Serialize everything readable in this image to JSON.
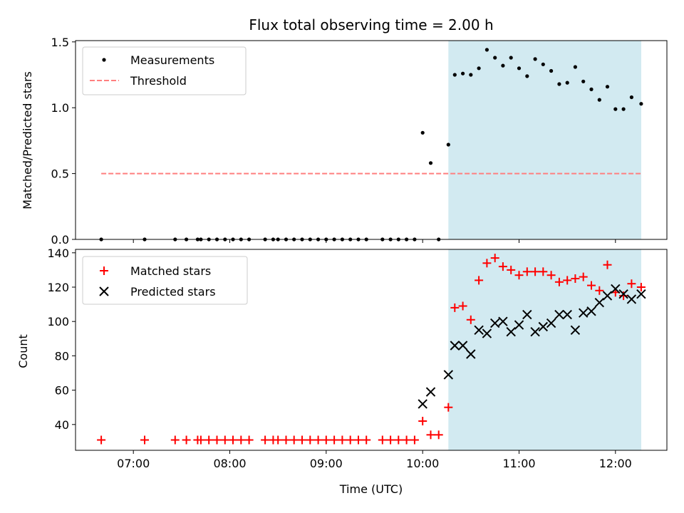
{
  "chart_data": [
    {
      "type": "scatter",
      "title": "Flux total observing time = 2.00 h",
      "xlabel": "",
      "ylabel": "Matched/Predicted stars",
      "xlim": [
        "06:24",
        "12:32"
      ],
      "ylim": [
        0,
        1.51
      ],
      "yticks": [
        "0.0",
        "0.5",
        "1.0",
        "1.5"
      ],
      "shaded_interval": [
        "10:16",
        "12:16"
      ],
      "shaded_color": "#add8e6",
      "legend_position": "top-left",
      "series": [
        {
          "name": "Measurements",
          "marker": "dot",
          "color": "#000000",
          "x": [
            "06:40",
            "07:07",
            "07:26",
            "07:33",
            "07:40",
            "07:42",
            "07:47",
            "07:52",
            "07:57",
            "08:02",
            "08:07",
            "08:12",
            "08:22",
            "08:27",
            "08:30",
            "08:35",
            "08:40",
            "08:45",
            "08:50",
            "08:55",
            "09:00",
            "09:05",
            "09:10",
            "09:15",
            "09:20",
            "09:25",
            "09:35",
            "09:40",
            "09:45",
            "09:50",
            "09:55",
            "10:00",
            "10:05",
            "10:10",
            "10:16",
            "10:20",
            "10:25",
            "10:30",
            "10:35",
            "10:40",
            "10:45",
            "10:50",
            "10:55",
            "11:00",
            "11:05",
            "11:10",
            "11:15",
            "11:20",
            "11:25",
            "11:30",
            "11:35",
            "11:40",
            "11:45",
            "11:50",
            "11:55",
            "12:00",
            "12:05",
            "12:10",
            "12:16"
          ],
          "y": [
            0,
            0,
            0,
            0,
            0,
            0,
            0,
            0,
            0,
            0,
            0,
            0,
            0,
            0,
            0,
            0,
            0,
            0,
            0,
            0,
            0,
            0,
            0,
            0,
            0,
            0,
            0,
            0,
            0,
            0,
            0,
            0.81,
            0.58,
            0,
            0.72,
            1.25,
            1.26,
            1.25,
            1.3,
            1.44,
            1.38,
            1.32,
            1.38,
            1.3,
            1.24,
            1.37,
            1.33,
            1.28,
            1.18,
            1.19,
            1.31,
            1.2,
            1.14,
            1.06,
            1.16,
            0.99,
            0.99,
            1.08,
            1.03
          ]
        },
        {
          "name": "Threshold",
          "line": "dashed",
          "color": "#ff7f7f",
          "x": [
            "06:40",
            "12:16"
          ],
          "y": [
            0.5,
            0.5
          ]
        }
      ]
    },
    {
      "type": "scatter",
      "title": "",
      "xlabel": "Time (UTC)",
      "ylabel": "Count",
      "xlim": [
        "06:24",
        "12:32"
      ],
      "ylim": [
        25,
        142
      ],
      "xticks": [
        "07:00",
        "08:00",
        "09:00",
        "10:00",
        "11:00",
        "12:00"
      ],
      "yticks": [
        "40",
        "60",
        "80",
        "100",
        "120",
        "140"
      ],
      "shaded_interval": [
        "10:16",
        "12:16"
      ],
      "shaded_color": "#add8e6",
      "legend_position": "top-left",
      "series": [
        {
          "name": "Matched stars",
          "marker": "plus",
          "color": "#ff0000",
          "x": [
            "06:40",
            "07:07",
            "07:26",
            "07:33",
            "07:40",
            "07:42",
            "07:47",
            "07:52",
            "07:57",
            "08:02",
            "08:07",
            "08:12",
            "08:22",
            "08:27",
            "08:30",
            "08:35",
            "08:40",
            "08:45",
            "08:50",
            "08:55",
            "09:00",
            "09:05",
            "09:10",
            "09:15",
            "09:20",
            "09:25",
            "09:35",
            "09:40",
            "09:45",
            "09:50",
            "09:55",
            "10:00",
            "10:05",
            "10:10",
            "10:16",
            "10:20",
            "10:25",
            "10:30",
            "10:35",
            "10:40",
            "10:45",
            "10:50",
            "10:55",
            "11:00",
            "11:05",
            "11:10",
            "11:15",
            "11:20",
            "11:25",
            "11:30",
            "11:35",
            "11:40",
            "11:45",
            "11:50",
            "11:55",
            "12:00",
            "12:05",
            "12:10",
            "12:16"
          ],
          "y": [
            31,
            31,
            31,
            31,
            31,
            31,
            31,
            31,
            31,
            31,
            31,
            31,
            31,
            31,
            31,
            31,
            31,
            31,
            31,
            31,
            31,
            31,
            31,
            31,
            31,
            31,
            31,
            31,
            31,
            31,
            31,
            42,
            34,
            34,
            50,
            108,
            109,
            101,
            124,
            134,
            137,
            132,
            130,
            127,
            129,
            129,
            129,
            127,
            123,
            124,
            125,
            126,
            121,
            118,
            133,
            117,
            115,
            122,
            120
          ]
        },
        {
          "name": "Predicted stars",
          "marker": "x",
          "color": "#000000",
          "x": [
            "10:00",
            "10:05",
            "10:16",
            "10:20",
            "10:25",
            "10:30",
            "10:35",
            "10:40",
            "10:45",
            "10:50",
            "10:55",
            "11:00",
            "11:05",
            "11:10",
            "11:15",
            "11:20",
            "11:25",
            "11:30",
            "11:35",
            "11:40",
            "11:45",
            "11:50",
            "11:55",
            "12:00",
            "12:05",
            "12:10",
            "12:16"
          ],
          "y": [
            52,
            59,
            69,
            86,
            86,
            81,
            95,
            93,
            99,
            100,
            94,
            98,
            104,
            94,
            97,
            99,
            104,
            104,
            95,
            105,
            106,
            111,
            115,
            119,
            116,
            113,
            116
          ]
        }
      ]
    }
  ]
}
